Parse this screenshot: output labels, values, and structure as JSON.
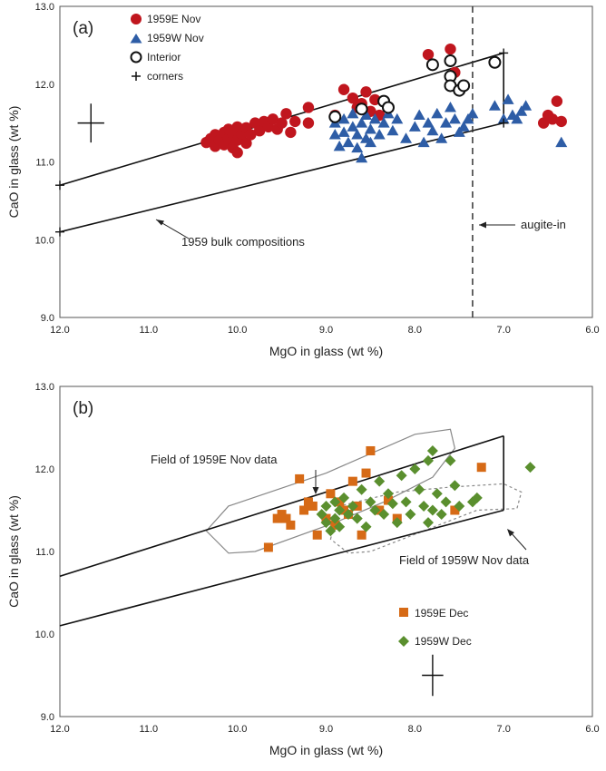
{
  "chart_data": [
    {
      "type": "scatter",
      "panel_label": "(a)",
      "xlabel": "MgO in glass (wt %)",
      "ylabel": "CaO in glass (wt %)",
      "xlim": [
        12.0,
        6.0
      ],
      "ylim": [
        9.0,
        13.0
      ],
      "x_reversed": true,
      "xticks": [
        "12.0",
        "11.0",
        "10.0",
        "9.0",
        "8.0",
        "7.0",
        "6.0"
      ],
      "yticks": [
        "9.0",
        "10.0",
        "11.0",
        "12.0",
        "13.0"
      ],
      "legend_position": "top-left",
      "colors": {
        "east": "#c0161e",
        "west": "#2e5da6",
        "line": "#111111"
      },
      "series": [
        {
          "name": "1959E Nov",
          "marker": "circle",
          "points": [
            [
              10.35,
              11.25
            ],
            [
              10.3,
              11.3
            ],
            [
              10.25,
              11.2
            ],
            [
              10.25,
              11.35
            ],
            [
              10.2,
              11.28
            ],
            [
              10.15,
              11.38
            ],
            [
              10.15,
              11.22
            ],
            [
              10.1,
              11.3
            ],
            [
              10.1,
              11.42
            ],
            [
              10.05,
              11.18
            ],
            [
              10.05,
              11.35
            ],
            [
              10.0,
              11.28
            ],
            [
              10.0,
              11.45
            ],
            [
              10.0,
              11.12
            ],
            [
              9.95,
              11.36
            ],
            [
              9.9,
              11.44
            ],
            [
              9.9,
              11.24
            ],
            [
              9.85,
              11.35
            ],
            [
              9.8,
              11.5
            ],
            [
              9.75,
              11.4
            ],
            [
              9.7,
              11.52
            ],
            [
              9.65,
              11.45
            ],
            [
              9.6,
              11.55
            ],
            [
              9.55,
              11.42
            ],
            [
              9.5,
              11.5
            ],
            [
              9.45,
              11.62
            ],
            [
              9.4,
              11.38
            ],
            [
              9.35,
              11.52
            ],
            [
              9.2,
              11.7
            ],
            [
              9.2,
              11.5
            ],
            [
              8.9,
              11.6
            ],
            [
              8.8,
              11.93
            ],
            [
              8.7,
              11.82
            ],
            [
              8.65,
              11.7
            ],
            [
              8.6,
              11.75
            ],
            [
              8.55,
              11.9
            ],
            [
              8.5,
              11.65
            ],
            [
              8.45,
              11.8
            ],
            [
              8.4,
              11.6
            ],
            [
              7.85,
              12.38
            ],
            [
              7.6,
              12.45
            ],
            [
              7.55,
              12.15
            ],
            [
              6.55,
              11.5
            ],
            [
              6.5,
              11.6
            ],
            [
              6.45,
              11.55
            ],
            [
              6.4,
              11.78
            ],
            [
              6.35,
              11.52
            ]
          ]
        },
        {
          "name": "1959W Nov",
          "marker": "triangle",
          "points": [
            [
              8.9,
              11.5
            ],
            [
              8.9,
              11.35
            ],
            [
              8.85,
              11.2
            ],
            [
              8.8,
              11.55
            ],
            [
              8.8,
              11.38
            ],
            [
              8.75,
              11.25
            ],
            [
              8.7,
              11.62
            ],
            [
              8.7,
              11.45
            ],
            [
              8.65,
              11.35
            ],
            [
              8.65,
              11.18
            ],
            [
              8.6,
              11.05
            ],
            [
              8.6,
              11.5
            ],
            [
              8.55,
              11.6
            ],
            [
              8.55,
              11.3
            ],
            [
              8.5,
              11.42
            ],
            [
              8.5,
              11.25
            ],
            [
              8.45,
              11.55
            ],
            [
              8.4,
              11.35
            ],
            [
              8.35,
              11.5
            ],
            [
              8.3,
              11.62
            ],
            [
              8.25,
              11.4
            ],
            [
              8.2,
              11.55
            ],
            [
              8.1,
              11.3
            ],
            [
              8.0,
              11.45
            ],
            [
              7.95,
              11.6
            ],
            [
              7.9,
              11.25
            ],
            [
              7.85,
              11.5
            ],
            [
              7.8,
              11.4
            ],
            [
              7.75,
              11.62
            ],
            [
              7.7,
              11.3
            ],
            [
              7.65,
              11.5
            ],
            [
              7.6,
              11.7
            ],
            [
              7.55,
              11.55
            ],
            [
              7.5,
              11.38
            ],
            [
              7.45,
              11.45
            ],
            [
              7.4,
              11.55
            ],
            [
              7.35,
              11.62
            ],
            [
              7.1,
              11.72
            ],
            [
              7.0,
              11.55
            ],
            [
              6.95,
              11.8
            ],
            [
              6.9,
              11.6
            ],
            [
              6.85,
              11.55
            ],
            [
              6.8,
              11.65
            ],
            [
              6.75,
              11.72
            ],
            [
              6.35,
              11.25
            ]
          ]
        },
        {
          "name": "Interior",
          "marker": "open-circle",
          "points": [
            [
              8.9,
              11.58
            ],
            [
              8.6,
              11.68
            ],
            [
              8.35,
              11.78
            ],
            [
              8.3,
              11.7
            ],
            [
              7.8,
              12.25
            ],
            [
              7.6,
              12.3
            ],
            [
              7.6,
              12.1
            ],
            [
              7.6,
              11.98
            ],
            [
              7.5,
              11.92
            ],
            [
              7.45,
              11.98
            ],
            [
              7.1,
              12.28
            ]
          ]
        },
        {
          "name": "corners",
          "marker": "plus",
          "points": [
            [
              12.0,
              10.7
            ],
            [
              12.0,
              10.1
            ],
            [
              7.0,
              12.4
            ],
            [
              7.0,
              11.5
            ]
          ]
        }
      ],
      "lines": [
        {
          "from": [
            12.0,
            10.7
          ],
          "to": [
            7.0,
            12.4
          ]
        },
        {
          "from": [
            12.0,
            10.1
          ],
          "to": [
            7.0,
            11.5
          ]
        },
        {
          "from": [
            7.0,
            12.4
          ],
          "to": [
            7.0,
            11.5
          ]
        }
      ],
      "vline": {
        "x": 7.35,
        "style": "dashed"
      },
      "error_cross": {
        "x": 11.65,
        "y": 11.5,
        "dx": 0.15,
        "dy": 0.25
      },
      "annotations": [
        {
          "text": "1959 bulk compositions",
          "arrow_to": [
            11.0,
            10.45
          ]
        },
        {
          "text": "augite-in",
          "arrow_to": [
            7.35,
            10.35
          ]
        }
      ]
    },
    {
      "type": "scatter",
      "panel_label": "(b)",
      "xlabel": "MgO in glass (wt %)",
      "ylabel": "CaO in glass (wt %)",
      "xlim": [
        12.0,
        6.0
      ],
      "ylim": [
        9.0,
        13.0
      ],
      "x_reversed": true,
      "xticks": [
        "12.0",
        "11.0",
        "10.0",
        "9.0",
        "8.0",
        "7.0",
        "6.0"
      ],
      "yticks": [
        "9.0",
        "10.0",
        "11.0",
        "12.0",
        "13.0"
      ],
      "legend_position": "bottom-right",
      "colors": {
        "east": "#d66a16",
        "west": "#5a8f2e",
        "field": "#888888"
      },
      "series": [
        {
          "name": "1959E Dec",
          "marker": "square",
          "points": [
            [
              9.65,
              11.05
            ],
            [
              9.55,
              11.4
            ],
            [
              9.5,
              11.45
            ],
            [
              9.45,
              11.4
            ],
            [
              9.4,
              11.32
            ],
            [
              9.3,
              11.88
            ],
            [
              9.25,
              11.5
            ],
            [
              9.2,
              11.6
            ],
            [
              9.15,
              11.55
            ],
            [
              9.1,
              11.2
            ],
            [
              9.0,
              11.4
            ],
            [
              8.95,
              11.7
            ],
            [
              8.9,
              11.32
            ],
            [
              8.85,
              11.6
            ],
            [
              8.8,
              11.5
            ],
            [
              8.75,
              11.45
            ],
            [
              8.7,
              11.85
            ],
            [
              8.65,
              11.55
            ],
            [
              8.6,
              11.2
            ],
            [
              8.55,
              11.95
            ],
            [
              8.5,
              12.22
            ],
            [
              8.4,
              11.5
            ],
            [
              8.3,
              11.62
            ],
            [
              8.2,
              11.4
            ],
            [
              7.55,
              11.5
            ],
            [
              7.25,
              12.02
            ]
          ]
        },
        {
          "name": "1959W Dec",
          "marker": "diamond",
          "points": [
            [
              9.05,
              11.45
            ],
            [
              9.0,
              11.55
            ],
            [
              9.0,
              11.35
            ],
            [
              8.95,
              11.25
            ],
            [
              8.9,
              11.4
            ],
            [
              8.9,
              11.6
            ],
            [
              8.85,
              11.3
            ],
            [
              8.85,
              11.5
            ],
            [
              8.8,
              11.65
            ],
            [
              8.75,
              11.45
            ],
            [
              8.7,
              11.55
            ],
            [
              8.65,
              11.4
            ],
            [
              8.6,
              11.75
            ],
            [
              8.55,
              11.3
            ],
            [
              8.5,
              11.6
            ],
            [
              8.45,
              11.5
            ],
            [
              8.4,
              11.85
            ],
            [
              8.35,
              11.45
            ],
            [
              8.3,
              11.7
            ],
            [
              8.25,
              11.58
            ],
            [
              8.2,
              11.35
            ],
            [
              8.15,
              11.92
            ],
            [
              8.1,
              11.6
            ],
            [
              8.05,
              11.45
            ],
            [
              8.0,
              12.0
            ],
            [
              7.95,
              11.75
            ],
            [
              7.9,
              11.55
            ],
            [
              7.85,
              12.1
            ],
            [
              7.85,
              11.35
            ],
            [
              7.8,
              12.22
            ],
            [
              7.8,
              11.5
            ],
            [
              7.75,
              11.7
            ],
            [
              7.7,
              11.45
            ],
            [
              7.65,
              11.6
            ],
            [
              7.6,
              12.1
            ],
            [
              7.55,
              11.8
            ],
            [
              7.5,
              11.55
            ],
            [
              7.35,
              11.6
            ],
            [
              7.3,
              11.65
            ],
            [
              6.7,
              12.02
            ]
          ]
        }
      ],
      "lines": [
        {
          "from": [
            12.0,
            10.7
          ],
          "to": [
            7.0,
            12.4
          ]
        },
        {
          "from": [
            12.0,
            10.1
          ],
          "to": [
            7.0,
            11.5
          ]
        },
        {
          "from": [
            7.0,
            12.4
          ],
          "to": [
            7.0,
            11.5
          ]
        }
      ],
      "fields": [
        {
          "name": "Field of 1959E Nov data",
          "style": "solid",
          "points": [
            [
              10.35,
              11.25
            ],
            [
              10.1,
              11.55
            ],
            [
              9.0,
              11.95
            ],
            [
              8.0,
              12.42
            ],
            [
              7.6,
              12.48
            ],
            [
              7.55,
              12.25
            ],
            [
              7.8,
              11.9
            ],
            [
              8.35,
              11.6
            ],
            [
              8.9,
              11.35
            ],
            [
              9.8,
              11.0
            ],
            [
              10.1,
              10.98
            ]
          ]
        },
        {
          "name": "Field of 1959W Nov data",
          "style": "dashed",
          "points": [
            [
              8.95,
              11.15
            ],
            [
              8.85,
              11.55
            ],
            [
              8.2,
              11.72
            ],
            [
              7.6,
              11.78
            ],
            [
              7.0,
              11.82
            ],
            [
              6.8,
              11.72
            ],
            [
              6.85,
              11.52
            ],
            [
              7.3,
              11.5
            ],
            [
              7.9,
              11.25
            ],
            [
              8.5,
              11.0
            ],
            [
              8.75,
              10.98
            ]
          ]
        }
      ],
      "error_cross": {
        "x": 7.8,
        "y": 9.5,
        "dx": 0.12,
        "dy": 0.25
      },
      "annotations": [
        {
          "text": "Field of 1959E Nov data",
          "arrow_to": [
            8.9,
            11.75
          ]
        },
        {
          "text": "Field of 1959W Nov data",
          "arrow_to": [
            7.1,
            11.35
          ]
        }
      ]
    }
  ]
}
